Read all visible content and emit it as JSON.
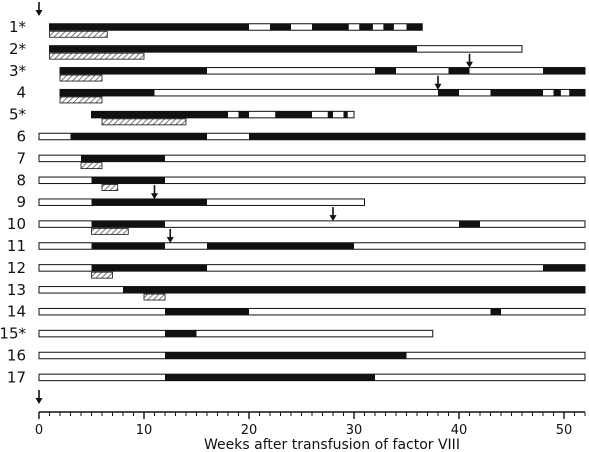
{
  "chart_data": {
    "type": "bar",
    "xlabel": "Weeks after transfusion of factor VIII",
    "ylabel": "",
    "xlim": [
      0,
      52
    ],
    "xticks": [
      "0",
      "10",
      "20",
      "30",
      "40",
      "50"
    ],
    "xtick_values": [
      0,
      10,
      20,
      30,
      40,
      50
    ],
    "grid": false,
    "colors": {
      "dark": "#111111",
      "light": "#ffffff",
      "hatch": "#555555"
    },
    "legend": "none",
    "rows": [
      {
        "label": "1*",
        "start": 1,
        "end": 36.5,
        "dark": [
          [
            1,
            20
          ],
          [
            22,
            24
          ],
          [
            26,
            29.5
          ],
          [
            30.5,
            31.8
          ],
          [
            32.8,
            33.8
          ],
          [
            35,
            36.5
          ]
        ],
        "hatch": [
          [
            1,
            6.5
          ]
        ],
        "arrows": []
      },
      {
        "label": "2*",
        "start": 1,
        "end": 46,
        "dark": [
          [
            1,
            36
          ]
        ],
        "hatch": [
          [
            1,
            10
          ]
        ],
        "arrows": []
      },
      {
        "label": "3*",
        "start": 2,
        "end": 52,
        "dark": [
          [
            2,
            16
          ],
          [
            32,
            34
          ],
          [
            39,
            41
          ],
          [
            48,
            52
          ]
        ],
        "hatch": [
          [
            2,
            6
          ]
        ],
        "arrows": [
          41
        ]
      },
      {
        "label": "4",
        "start": 2,
        "end": 52,
        "dark": [
          [
            2,
            11
          ],
          [
            38,
            40
          ],
          [
            43,
            48
          ],
          [
            49,
            49.7
          ],
          [
            50.5,
            52
          ]
        ],
        "hatch": [
          [
            2,
            6
          ]
        ],
        "arrows": [
          38
        ]
      },
      {
        "label": "5*",
        "start": 5,
        "end": 30,
        "dark": [
          [
            5,
            18
          ],
          [
            19,
            20
          ],
          [
            22.5,
            26
          ],
          [
            27.5,
            28
          ],
          [
            29,
            29.4
          ]
        ],
        "hatch": [
          [
            6,
            14
          ]
        ],
        "arrows": []
      },
      {
        "label": "6",
        "start": 0,
        "end": 52,
        "dark": [
          [
            3,
            16
          ],
          [
            20,
            52
          ]
        ],
        "hatch": [],
        "arrows": []
      },
      {
        "label": "7",
        "start": 0,
        "end": 52,
        "dark": [
          [
            4,
            12
          ]
        ],
        "hatch": [
          [
            4,
            6
          ]
        ],
        "arrows": []
      },
      {
        "label": "8",
        "start": 0,
        "end": 52,
        "dark": [
          [
            5,
            12
          ]
        ],
        "hatch": [
          [
            6,
            7.5
          ]
        ],
        "arrows": []
      },
      {
        "label": "9",
        "start": 0,
        "end": 31,
        "dark": [
          [
            5,
            16
          ]
        ],
        "hatch": [],
        "arrows": [
          11
        ]
      },
      {
        "label": "10",
        "start": 0,
        "end": 52,
        "dark": [
          [
            5,
            12
          ],
          [
            40,
            42
          ]
        ],
        "hatch": [
          [
            5,
            8.5
          ]
        ],
        "arrows": [
          28
        ]
      },
      {
        "label": "11",
        "start": 0,
        "end": 52,
        "dark": [
          [
            5,
            12
          ],
          [
            16,
            30
          ]
        ],
        "hatch": [],
        "arrows": [
          12.5
        ]
      },
      {
        "label": "12",
        "start": 0,
        "end": 52,
        "dark": [
          [
            5,
            16
          ],
          [
            48,
            52
          ]
        ],
        "hatch": [
          [
            5,
            7
          ]
        ],
        "arrows": []
      },
      {
        "label": "13",
        "start": 0,
        "end": 52,
        "dark": [
          [
            8,
            52
          ]
        ],
        "hatch": [
          [
            10,
            12
          ]
        ],
        "arrows": []
      },
      {
        "label": "14",
        "start": 0,
        "end": 52,
        "dark": [
          [
            12,
            20
          ],
          [
            43,
            44
          ]
        ],
        "hatch": [],
        "arrows": []
      },
      {
        "label": "15*",
        "start": 0,
        "end": 37.5,
        "dark": [
          [
            12,
            15
          ]
        ],
        "hatch": [],
        "arrows": []
      },
      {
        "label": "16",
        "start": 0,
        "end": 52,
        "dark": [
          [
            12,
            35
          ]
        ],
        "hatch": [],
        "arrows": []
      },
      {
        "label": "17",
        "start": 0,
        "end": 52,
        "dark": [
          [
            12,
            32
          ]
        ],
        "hatch": [],
        "arrows": []
      }
    ]
  }
}
